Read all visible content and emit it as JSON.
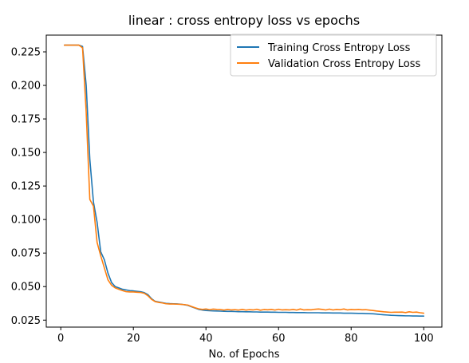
{
  "chart_data": {
    "type": "line",
    "title": "linear : cross entropy loss vs epochs",
    "xlabel": "No. of Epochs",
    "ylabel": "",
    "xlim": [
      -4,
      105
    ],
    "ylim": [
      0.0198,
      0.2375
    ],
    "x_ticks": [
      0,
      20,
      40,
      60,
      80,
      100
    ],
    "y_ticks": [
      0.025,
      0.05,
      0.075,
      0.1,
      0.125,
      0.15,
      0.175,
      0.2,
      0.225
    ],
    "y_tick_labels": [
      "0.025",
      "0.050",
      "0.075",
      "0.100",
      "0.125",
      "0.150",
      "0.175",
      "0.200",
      "0.225"
    ],
    "grid": false,
    "legend_position": "top-right",
    "x": [
      1,
      2,
      3,
      4,
      5,
      6,
      7,
      8,
      9,
      10,
      11,
      12,
      13,
      14,
      15,
      16,
      17,
      18,
      19,
      20,
      21,
      22,
      23,
      24,
      25,
      26,
      27,
      28,
      29,
      30,
      31,
      32,
      33,
      34,
      35,
      36,
      37,
      38,
      39,
      40,
      41,
      42,
      43,
      44,
      45,
      46,
      47,
      48,
      49,
      50,
      51,
      52,
      53,
      54,
      55,
      56,
      57,
      58,
      59,
      60,
      61,
      62,
      63,
      64,
      65,
      66,
      67,
      68,
      69,
      70,
      71,
      72,
      73,
      74,
      75,
      76,
      77,
      78,
      79,
      80,
      81,
      82,
      83,
      84,
      85,
      86,
      87,
      88,
      89,
      90,
      91,
      92,
      93,
      94,
      95,
      96,
      97,
      98,
      99,
      100
    ],
    "series": [
      {
        "name": "Training Cross Entropy Loss",
        "color": "#1f77b4",
        "values": [
          0.23,
          0.23,
          0.23,
          0.23,
          0.23,
          0.229,
          0.2,
          0.145,
          0.113,
          0.098,
          0.076,
          0.07,
          0.06,
          0.053,
          0.05,
          0.049,
          0.048,
          0.0475,
          0.047,
          0.0468,
          0.0465,
          0.0462,
          0.0455,
          0.044,
          0.041,
          0.039,
          0.0385,
          0.038,
          0.0375,
          0.0373,
          0.0372,
          0.0371,
          0.0369,
          0.0365,
          0.036,
          0.035,
          0.034,
          0.033,
          0.0325,
          0.0322,
          0.032,
          0.0319,
          0.0318,
          0.0317,
          0.0316,
          0.0315,
          0.0315,
          0.0314,
          0.0313,
          0.0313,
          0.0312,
          0.0312,
          0.0311,
          0.0311,
          0.031,
          0.031,
          0.031,
          0.0309,
          0.0309,
          0.0308,
          0.0308,
          0.0308,
          0.0307,
          0.0307,
          0.0306,
          0.0306,
          0.0306,
          0.0305,
          0.0305,
          0.0305,
          0.0305,
          0.0304,
          0.0304,
          0.0304,
          0.0303,
          0.0303,
          0.0303,
          0.0302,
          0.0302,
          0.0302,
          0.0301,
          0.03,
          0.03,
          0.0299,
          0.0298,
          0.0297,
          0.0295,
          0.0292,
          0.029,
          0.0288,
          0.0286,
          0.0285,
          0.0284,
          0.0283,
          0.0282,
          0.0282,
          0.0281,
          0.0281,
          0.028,
          0.028
        ]
      },
      {
        "name": "Validation Cross Entropy Loss",
        "color": "#ff7f0e",
        "values": [
          0.23,
          0.23,
          0.23,
          0.23,
          0.23,
          0.228,
          0.18,
          0.115,
          0.11,
          0.083,
          0.073,
          0.064,
          0.055,
          0.051,
          0.049,
          0.048,
          0.047,
          0.0462,
          0.046,
          0.046,
          0.0458,
          0.0456,
          0.045,
          0.0432,
          0.0405,
          0.0388,
          0.0382,
          0.0378,
          0.0372,
          0.037,
          0.037,
          0.0369,
          0.0368,
          0.0366,
          0.0362,
          0.0352,
          0.0342,
          0.0334,
          0.033,
          0.0333,
          0.0328,
          0.0332,
          0.033,
          0.0329,
          0.0325,
          0.033,
          0.0326,
          0.0328,
          0.0325,
          0.033,
          0.0325,
          0.0328,
          0.0326,
          0.0331,
          0.0324,
          0.0329,
          0.0327,
          0.033,
          0.0325,
          0.0331,
          0.0326,
          0.0328,
          0.0326,
          0.033,
          0.0325,
          0.0333,
          0.0326,
          0.0328,
          0.0327,
          0.0331,
          0.0333,
          0.033,
          0.0326,
          0.0332,
          0.0326,
          0.033,
          0.0328,
          0.0333,
          0.0326,
          0.0329,
          0.0328,
          0.033,
          0.0327,
          0.0328,
          0.0325,
          0.0322,
          0.0318,
          0.0315,
          0.0312,
          0.031,
          0.0308,
          0.0309,
          0.0309,
          0.031,
          0.0306,
          0.0312,
          0.0308,
          0.031,
          0.0305,
          0.0302
        ]
      }
    ]
  }
}
